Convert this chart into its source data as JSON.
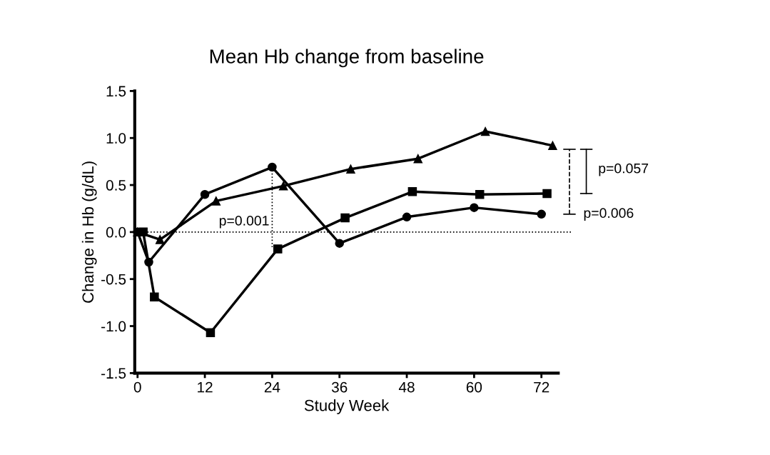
{
  "chart_data": {
    "type": "line",
    "title": "Mean Hb change from baseline",
    "xlabel": "Study Week",
    "ylabel": "Change in Hb (g/dL)",
    "xlim": [
      -0.5,
      75
    ],
    "xticks": [
      0,
      12,
      24,
      36,
      48,
      60,
      72
    ],
    "ylim": [
      -1.5,
      1.5
    ],
    "yticks": [
      {
        "value": -1.5,
        "label": "-1.5"
      },
      {
        "value": -1,
        "label": "-1.0"
      },
      {
        "value": -0.5,
        "label": "-0.5"
      },
      {
        "value": 0,
        "label": "0.0"
      },
      {
        "value": 0.5,
        "label": "0.5"
      },
      {
        "value": 1,
        "label": "1.0"
      },
      {
        "value": 1.5,
        "label": "1.5"
      }
    ],
    "grid": false,
    "legend": false,
    "line_style": "solid",
    "series": [
      {
        "color": "#000000",
        "marker": "circle",
        "x": [
          0,
          2,
          12,
          24,
          36,
          48,
          60,
          72
        ],
        "values": [
          0,
          -0.32,
          0.4,
          0.69,
          -0.12,
          0.16,
          0.26,
          0.19
        ]
      },
      {
        "color": "#000000",
        "marker": "square",
        "x": [
          1,
          3,
          13,
          25,
          37,
          49,
          61,
          73
        ],
        "values": [
          0,
          -0.69,
          -1.07,
          -0.18,
          0.15,
          0.43,
          0.4,
          0.41
        ]
      },
      {
        "color": "#000000",
        "marker": "triangle",
        "x": [
          0,
          4,
          14,
          26,
          38,
          50,
          62,
          74
        ],
        "values": [
          0,
          -0.08,
          0.33,
          0.49,
          0.67,
          0.78,
          1.07,
          0.92
        ]
      }
    ],
    "ref_lines": [
      {
        "axis": "y",
        "value": 0,
        "line_style": "dotted",
        "color": "#000000"
      }
    ],
    "annotations": [
      {
        "text": "p=0.001",
        "x": 24,
        "y": 0.0
      },
      "p=0.057",
      "p=0.006"
    ]
  }
}
